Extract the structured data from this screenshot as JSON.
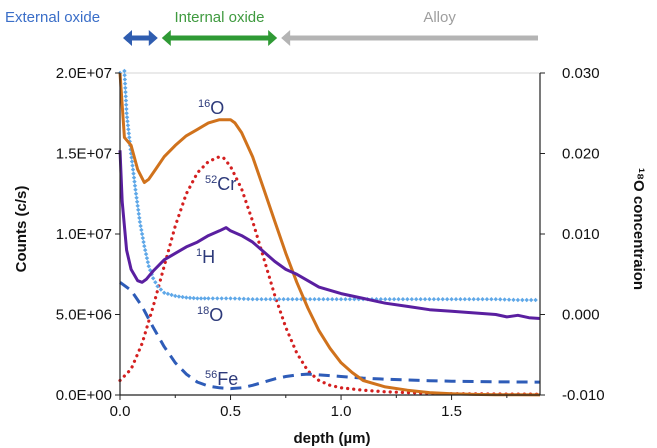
{
  "chart_data": {
    "type": "line",
    "xlabel": "depth (µm)",
    "ylabel_left": "Counts (c/s)",
    "ylabel_right": "¹⁸O concentraion",
    "xlim": [
      0,
      1.9
    ],
    "ylim_left": [
      0,
      20000000
    ],
    "ylim_right": [
      -0.01,
      0.03
    ],
    "x_ticks": [
      "0.0",
      "0.5",
      "1.0",
      "1.5"
    ],
    "y_left_ticks": [
      "0.0E+00",
      "5.0E+06",
      "1.0E+07",
      "1.5E+07",
      "2.0E+07"
    ],
    "y_right_ticks": [
      "-0.010",
      "0.000",
      "0.010",
      "0.020",
      "0.030"
    ],
    "regions": [
      {
        "label": "External oxide",
        "x_start": 0.0,
        "x_end": 0.18,
        "color": "#3a6ec8",
        "arrow_color": "#2f5db0"
      },
      {
        "label": "Internal oxide",
        "x_start": 0.18,
        "x_end": 0.72,
        "color": "#3f9a3f",
        "arrow_color": "#2f9a35"
      },
      {
        "label": "Alloy",
        "x_start": 0.72,
        "x_end": 1.9,
        "color": "#9e9e9e",
        "arrow_color": "#b4b4b4"
      }
    ],
    "series": [
      {
        "name": "16O",
        "label_mass": "16",
        "label_elem": "O",
        "axis": "left",
        "color": "#d0721c",
        "style": "solid",
        "x": [
          0.0,
          0.02,
          0.05,
          0.08,
          0.11,
          0.13,
          0.16,
          0.2,
          0.25,
          0.3,
          0.35,
          0.4,
          0.45,
          0.5,
          0.52,
          0.55,
          0.6,
          0.65,
          0.7,
          0.75,
          0.8,
          0.85,
          0.9,
          0.95,
          1.0,
          1.05,
          1.1,
          1.2,
          1.3,
          1.4,
          1.5,
          1.6,
          1.7,
          1.8,
          1.9
        ],
        "y": [
          20000000,
          16000000,
          15500000,
          14000000,
          13200000,
          13400000,
          14000000,
          14800000,
          15500000,
          16100000,
          16500000,
          16900000,
          17100000,
          17100000,
          16900000,
          16300000,
          14800000,
          12800000,
          10800000,
          8800000,
          7000000,
          5400000,
          4000000,
          2900000,
          2000000,
          1400000,
          900000,
          500000,
          300000,
          150000,
          80000,
          40000,
          20000,
          10000,
          5000
        ]
      },
      {
        "name": "52Cr",
        "label_mass": "52",
        "label_elem": "Cr",
        "axis": "left",
        "color": "#d42020",
        "style": "dotted",
        "x": [
          0.0,
          0.05,
          0.1,
          0.15,
          0.2,
          0.25,
          0.3,
          0.35,
          0.4,
          0.45,
          0.47,
          0.5,
          0.55,
          0.6,
          0.65,
          0.7,
          0.75,
          0.8,
          0.85,
          0.9,
          0.95,
          1.0,
          1.1,
          1.2,
          1.3,
          1.4,
          1.5,
          1.7,
          1.9
        ],
        "y": [
          900000,
          1600000,
          3200000,
          5500000,
          8000000,
          10500000,
          12500000,
          13800000,
          14500000,
          14800000,
          14700000,
          14200000,
          12800000,
          10800000,
          8500000,
          6200000,
          4200000,
          2600000,
          1500000,
          900000,
          600000,
          450000,
          300000,
          200000,
          150000,
          100000,
          80000,
          60000,
          50000
        ]
      },
      {
        "name": "1H",
        "label_mass": "1",
        "label_elem": "H",
        "axis": "left",
        "color": "#5a1fa0",
        "style": "solid",
        "x": [
          0.0,
          0.01,
          0.03,
          0.05,
          0.08,
          0.1,
          0.12,
          0.15,
          0.2,
          0.25,
          0.3,
          0.35,
          0.4,
          0.45,
          0.48,
          0.5,
          0.55,
          0.6,
          0.65,
          0.7,
          0.75,
          0.8,
          0.85,
          0.9,
          1.0,
          1.1,
          1.2,
          1.3,
          1.4,
          1.5,
          1.6,
          1.7,
          1.75,
          1.8,
          1.85,
          1.9
        ],
        "y": [
          15200000,
          12000000,
          9000000,
          7800000,
          7100000,
          7000000,
          7200000,
          7700000,
          8400000,
          8800000,
          9200000,
          9500000,
          9900000,
          10200000,
          10400000,
          10200000,
          9900000,
          9500000,
          8900000,
          8300000,
          7800000,
          7500000,
          7100000,
          6700000,
          6300000,
          6000000,
          5700000,
          5500000,
          5300000,
          5200000,
          5100000,
          5000000,
          4850000,
          4950000,
          4800000,
          4750000
        ]
      },
      {
        "name": "18O",
        "label_mass": "18",
        "label_elem": "O",
        "axis": "right",
        "color": "#5fa8e8",
        "style": "markers",
        "x": [
          0.0,
          0.02,
          0.03,
          0.05,
          0.07,
          0.09,
          0.11,
          0.13,
          0.15,
          0.17,
          0.2,
          0.25,
          0.3,
          0.35,
          0.4,
          0.5,
          0.6,
          0.7,
          0.8,
          0.9,
          1.0,
          1.1,
          1.2,
          1.3,
          1.4,
          1.5,
          1.6,
          1.7,
          1.8,
          1.9
        ],
        "y": [
          0.03,
          0.0305,
          0.025,
          0.02,
          0.0155,
          0.0115,
          0.0085,
          0.006,
          0.0045,
          0.0035,
          0.0027,
          0.0023,
          0.0021,
          0.002,
          0.002,
          0.002,
          0.0019,
          0.0019,
          0.0019,
          0.0019,
          0.0019,
          0.0019,
          0.0019,
          0.0019,
          0.0019,
          0.0019,
          0.0019,
          0.0019,
          0.0018,
          0.0018
        ]
      },
      {
        "name": "56Fe",
        "label_mass": "56",
        "label_elem": "Fe",
        "axis": "left",
        "color": "#2e5cb8",
        "style": "dashed",
        "x": [
          0.0,
          0.05,
          0.1,
          0.15,
          0.2,
          0.25,
          0.3,
          0.35,
          0.4,
          0.45,
          0.5,
          0.55,
          0.6,
          0.65,
          0.7,
          0.75,
          0.8,
          0.85,
          0.9,
          1.0,
          1.1,
          1.2,
          1.3,
          1.4,
          1.5,
          1.6,
          1.7,
          1.8,
          1.9
        ],
        "y": [
          7000000,
          6500000,
          5500000,
          4200000,
          3000000,
          2000000,
          1300000,
          800000,
          550000,
          450000,
          400000,
          450000,
          600000,
          800000,
          1000000,
          1150000,
          1250000,
          1300000,
          1250000,
          1150000,
          1050000,
          980000,
          930000,
          890000,
          860000,
          840000,
          820000,
          810000,
          800000
        ]
      }
    ]
  }
}
